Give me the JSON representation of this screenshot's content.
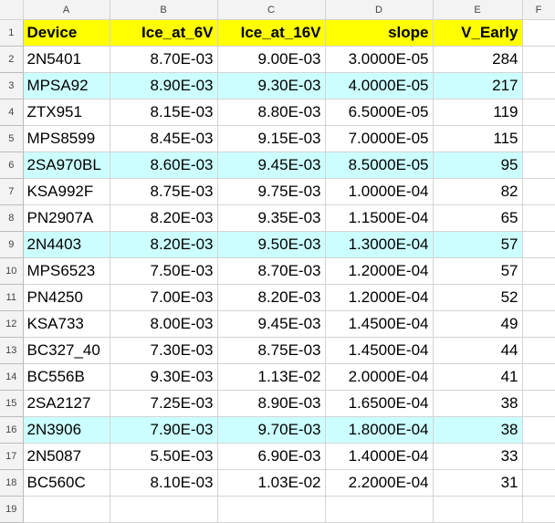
{
  "colors": {
    "header_fill": "#ffff00",
    "highlight_fill": "#ccffff",
    "grid_line": "#d4d4d4",
    "header_bg": "#f3f3f3"
  },
  "columns": [
    "A",
    "B",
    "C",
    "D",
    "E",
    "F"
  ],
  "row_numbers": [
    "1",
    "2",
    "3",
    "4",
    "5",
    "6",
    "7",
    "8",
    "9",
    "10",
    "11",
    "12",
    "13",
    "14",
    "15",
    "16",
    "17",
    "18",
    "19"
  ],
  "header": [
    "Device",
    "Ice_at_6V",
    "Ice_at_16V",
    "slope",
    "V_Early"
  ],
  "rows": [
    {
      "device": "2N5401",
      "ice6": "8.70E-03",
      "ice16": "9.00E-03",
      "slope": "3.0000E-05",
      "vearly": "284",
      "highlight": false
    },
    {
      "device": "MPSA92",
      "ice6": "8.90E-03",
      "ice16": "9.30E-03",
      "slope": "4.0000E-05",
      "vearly": "217",
      "highlight": true
    },
    {
      "device": "ZTX951",
      "ice6": "8.15E-03",
      "ice16": "8.80E-03",
      "slope": "6.5000E-05",
      "vearly": "119",
      "highlight": false
    },
    {
      "device": "MPS8599",
      "ice6": "8.45E-03",
      "ice16": "9.15E-03",
      "slope": "7.0000E-05",
      "vearly": "115",
      "highlight": false
    },
    {
      "device": "2SA970BL",
      "ice6": "8.60E-03",
      "ice16": "9.45E-03",
      "slope": "8.5000E-05",
      "vearly": "95",
      "highlight": true
    },
    {
      "device": "KSA992F",
      "ice6": "8.75E-03",
      "ice16": "9.75E-03",
      "slope": "1.0000E-04",
      "vearly": "82",
      "highlight": false
    },
    {
      "device": "PN2907A",
      "ice6": "8.20E-03",
      "ice16": "9.35E-03",
      "slope": "1.1500E-04",
      "vearly": "65",
      "highlight": false
    },
    {
      "device": "2N4403",
      "ice6": "8.20E-03",
      "ice16": "9.50E-03",
      "slope": "1.3000E-04",
      "vearly": "57",
      "highlight": true
    },
    {
      "device": "MPS6523",
      "ice6": "7.50E-03",
      "ice16": "8.70E-03",
      "slope": "1.2000E-04",
      "vearly": "57",
      "highlight": false
    },
    {
      "device": "PN4250",
      "ice6": "7.00E-03",
      "ice16": "8.20E-03",
      "slope": "1.2000E-04",
      "vearly": "52",
      "highlight": false
    },
    {
      "device": "KSA733",
      "ice6": "8.00E-03",
      "ice16": "9.45E-03",
      "slope": "1.4500E-04",
      "vearly": "49",
      "highlight": false
    },
    {
      "device": "BC327_40",
      "ice6": "7.30E-03",
      "ice16": "8.75E-03",
      "slope": "1.4500E-04",
      "vearly": "44",
      "highlight": false
    },
    {
      "device": "BC556B",
      "ice6": "9.30E-03",
      "ice16": "1.13E-02",
      "slope": "2.0000E-04",
      "vearly": "41",
      "highlight": false
    },
    {
      "device": "2SA2127",
      "ice6": "7.25E-03",
      "ice16": "8.90E-03",
      "slope": "1.6500E-04",
      "vearly": "38",
      "highlight": false
    },
    {
      "device": "2N3906",
      "ice6": "7.90E-03",
      "ice16": "9.70E-03",
      "slope": "1.8000E-04",
      "vearly": "38",
      "highlight": true
    },
    {
      "device": "2N5087",
      "ice6": "5.50E-03",
      "ice16": "6.90E-03",
      "slope": "1.4000E-04",
      "vearly": "33",
      "highlight": false
    },
    {
      "device": "BC560C",
      "ice6": "8.10E-03",
      "ice16": "1.03E-02",
      "slope": "2.2000E-04",
      "vearly": "31",
      "highlight": false
    }
  ]
}
